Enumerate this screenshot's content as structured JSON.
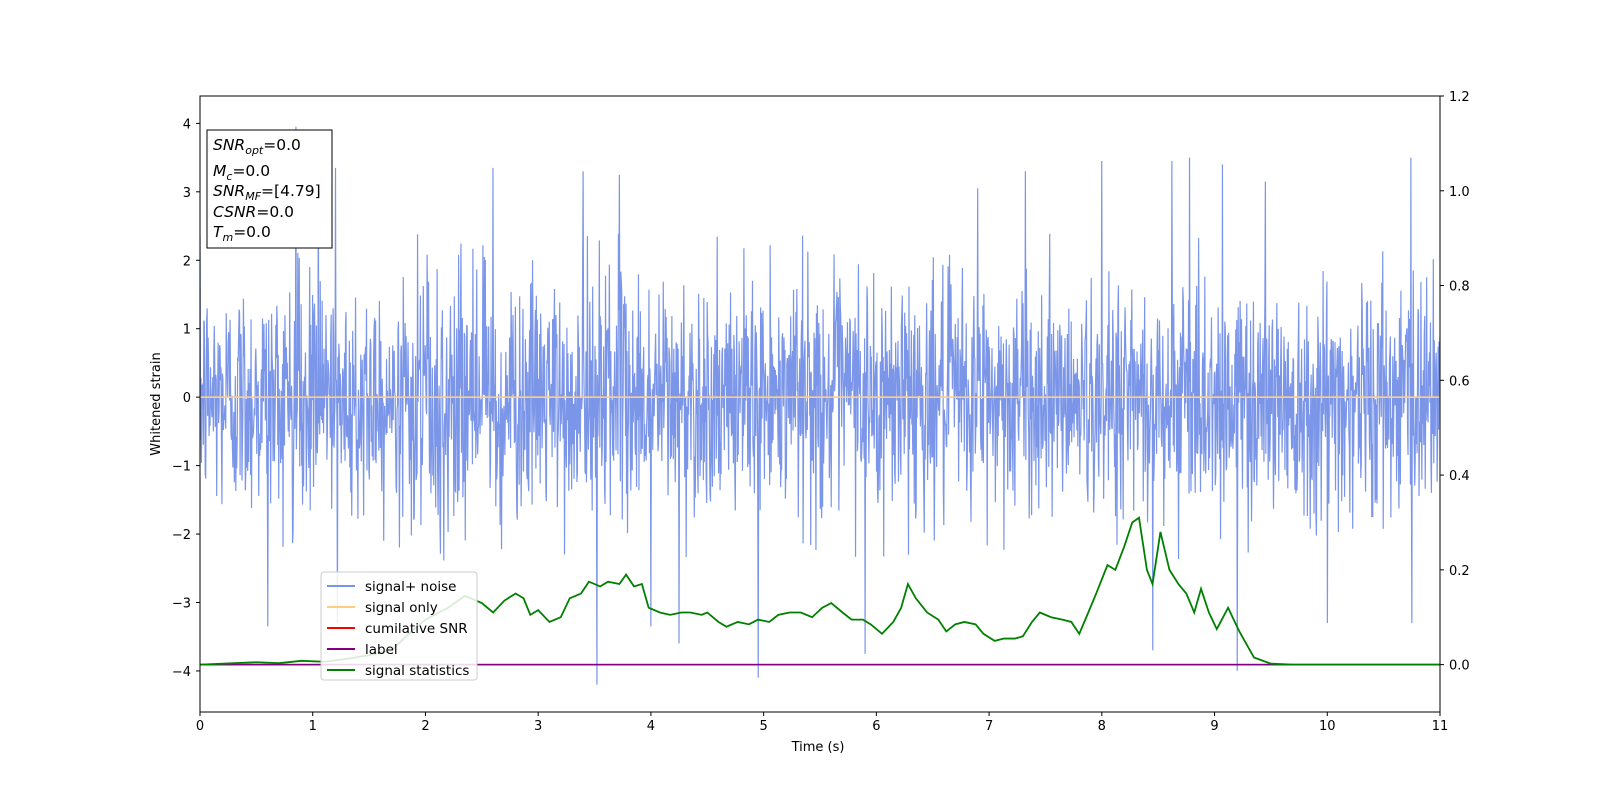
{
  "chart_data": {
    "type": "line",
    "xlabel": "Time (s)",
    "ylabel": "Whitened strain",
    "xlim": [
      0,
      11
    ],
    "ylim": [
      -4.6,
      4.4
    ],
    "y2lim": [
      -0.1,
      1.2
    ],
    "xticks": [
      "0",
      "1",
      "2",
      "3",
      "4",
      "5",
      "6",
      "7",
      "8",
      "9",
      "10",
      "11"
    ],
    "yticks": [
      "4",
      "3",
      "2",
      "1",
      "0",
      "−1",
      "−2",
      "−3",
      "−4"
    ],
    "y2ticks": [
      "1.2",
      "1.0",
      "0.8",
      "0.6",
      "0.4",
      "0.2",
      "0.0"
    ],
    "grid": false,
    "legend_position": "lower-left",
    "legend": [
      {
        "label": "signal+ noise",
        "color": "#7b96e8"
      },
      {
        "label": "signal only",
        "color": "#ffcc80"
      },
      {
        "label": "cumilative SNR",
        "color": "#ff0000"
      },
      {
        "label": "label",
        "color": "#800080"
      },
      {
        "label": "signal statistics",
        "color": "#008000"
      }
    ],
    "info_box": {
      "position": "upper-left",
      "lines": [
        {
          "base": "SNR",
          "sub": "opt",
          "value": "=0.0"
        },
        {
          "base": "M",
          "sub": "c",
          "value": "=0.0"
        },
        {
          "base": "SNR",
          "sub": "MF",
          "value": "=[4.79]"
        },
        {
          "base": "CSNR",
          "sub": "",
          "value": "=0.0"
        },
        {
          "base": "T",
          "sub": "m",
          "value": "=0.0"
        }
      ]
    },
    "series": [
      {
        "name": "signal+ noise",
        "axis": "left",
        "color": "#7b96e8",
        "description_points": {
          "spikes_positive": [
            {
              "x": 0.85,
              "y": 3.95
            },
            {
              "x": 1.05,
              "y": 3.6
            },
            {
              "x": 1.2,
              "y": 3.35
            },
            {
              "x": 2.6,
              "y": 3.35
            },
            {
              "x": 3.4,
              "y": 3.3
            },
            {
              "x": 3.72,
              "y": 3.25
            },
            {
              "x": 6.9,
              "y": 3.05
            },
            {
              "x": 7.32,
              "y": 3.3
            },
            {
              "x": 8.0,
              "y": 3.45
            },
            {
              "x": 8.62,
              "y": 3.45
            },
            {
              "x": 8.78,
              "y": 3.5
            },
            {
              "x": 9.07,
              "y": 3.4
            },
            {
              "x": 9.45,
              "y": 3.15
            },
            {
              "x": 10.74,
              "y": 3.5
            }
          ],
          "spikes_negative": [
            {
              "x": 0.6,
              "y": -3.35
            },
            {
              "x": 1.22,
              "y": -3.3
            },
            {
              "x": 3.52,
              "y": -4.2
            },
            {
              "x": 4.0,
              "y": -3.35
            },
            {
              "x": 4.25,
              "y": -3.6
            },
            {
              "x": 4.95,
              "y": -4.1
            },
            {
              "x": 5.9,
              "y": -3.75
            },
            {
              "x": 8.45,
              "y": -3.7
            },
            {
              "x": 9.2,
              "y": -4.0
            },
            {
              "x": 10.0,
              "y": -3.3
            },
            {
              "x": 10.75,
              "y": -3.3
            }
          ],
          "typical_envelope": [
            -2.2,
            2.3
          ]
        }
      },
      {
        "name": "signal only",
        "axis": "left",
        "color": "#ffcc80",
        "x": [
          0,
          11
        ],
        "y": [
          0,
          0
        ]
      },
      {
        "name": "cumilative SNR",
        "axis": "right",
        "color": "#ff0000",
        "x": [
          0,
          11
        ],
        "y": [
          0,
          0
        ]
      },
      {
        "name": "label",
        "axis": "right",
        "color": "#800080",
        "x": [
          0,
          11
        ],
        "y": [
          0,
          0
        ]
      },
      {
        "name": "signal statistics",
        "axis": "right",
        "color": "#008000",
        "x": [
          0.0,
          0.5,
          0.7,
          0.9,
          1.1,
          1.3,
          1.5,
          1.7,
          1.85,
          2.0,
          2.2,
          2.35,
          2.5,
          2.6,
          2.7,
          2.8,
          2.87,
          2.93,
          3.0,
          3.1,
          3.2,
          3.28,
          3.38,
          3.45,
          3.55,
          3.62,
          3.72,
          3.78,
          3.85,
          3.92,
          3.98,
          4.08,
          4.17,
          4.27,
          4.35,
          4.45,
          4.5,
          4.6,
          4.67,
          4.77,
          4.87,
          4.95,
          5.05,
          5.13,
          5.23,
          5.33,
          5.43,
          5.52,
          5.6,
          5.7,
          5.78,
          5.88,
          5.95,
          6.05,
          6.15,
          6.22,
          6.28,
          6.35,
          6.45,
          6.55,
          6.62,
          6.7,
          6.78,
          6.88,
          6.95,
          7.05,
          7.13,
          7.23,
          7.3,
          7.38,
          7.45,
          7.55,
          7.65,
          7.73,
          7.8,
          7.88,
          7.95,
          8.05,
          8.12,
          8.2,
          8.27,
          8.33,
          8.4,
          8.45,
          8.52,
          8.6,
          8.68,
          8.75,
          8.82,
          8.88,
          8.95,
          9.02,
          9.12,
          9.22,
          9.35,
          9.5,
          9.7,
          10.0,
          10.5,
          11.0
        ],
        "y": [
          0.0,
          0.005,
          0.003,
          0.008,
          0.006,
          0.012,
          0.02,
          0.03,
          0.065,
          0.095,
          0.12,
          0.145,
          0.13,
          0.11,
          0.135,
          0.15,
          0.14,
          0.105,
          0.115,
          0.09,
          0.1,
          0.14,
          0.15,
          0.175,
          0.165,
          0.175,
          0.17,
          0.19,
          0.165,
          0.17,
          0.12,
          0.11,
          0.105,
          0.11,
          0.11,
          0.105,
          0.11,
          0.09,
          0.08,
          0.09,
          0.085,
          0.095,
          0.09,
          0.105,
          0.11,
          0.11,
          0.1,
          0.12,
          0.13,
          0.11,
          0.095,
          0.095,
          0.085,
          0.065,
          0.09,
          0.12,
          0.17,
          0.14,
          0.11,
          0.095,
          0.07,
          0.085,
          0.09,
          0.085,
          0.065,
          0.05,
          0.055,
          0.055,
          0.06,
          0.09,
          0.11,
          0.1,
          0.095,
          0.09,
          0.065,
          0.11,
          0.15,
          0.21,
          0.2,
          0.25,
          0.3,
          0.31,
          0.2,
          0.17,
          0.28,
          0.2,
          0.17,
          0.15,
          0.11,
          0.16,
          0.11,
          0.075,
          0.12,
          0.07,
          0.015,
          0.002,
          0.0,
          0.0,
          0.0,
          0.0
        ]
      }
    ]
  }
}
